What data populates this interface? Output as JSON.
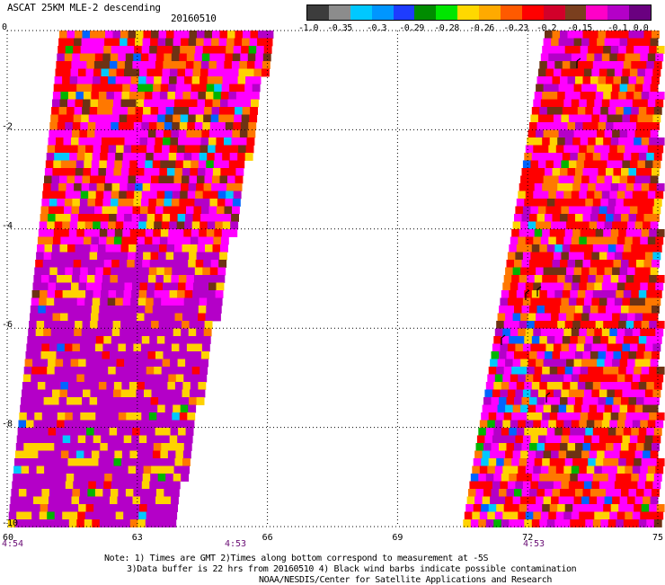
{
  "header": {
    "title": "ASCAT 25KM MLE-2 descending",
    "date": "20160510"
  },
  "colorbar": {
    "colors": [
      "#3c3c3c",
      "#8c8c8c",
      "#00c8ff",
      "#0096ff",
      "#1e3cff",
      "#008c00",
      "#00e600",
      "#ffd800",
      "#ffaa00",
      "#ff5a00",
      "#ff0000",
      "#d2002a",
      "#7a3f1e",
      "#ff00c8",
      "#b400c8",
      "#6a0080"
    ],
    "labels": [
      "-1.0",
      "-0.35",
      "-0.3",
      "-0.29",
      "-0.28",
      "-0.26",
      "-0.23",
      "-0.2",
      "-0.15",
      "-0.1",
      "0.0"
    ]
  },
  "axes": {
    "y_ticks": [
      "0",
      "-2",
      "-4",
      "-6",
      "-8",
      "-10"
    ],
    "x_ticks": [
      "60",
      "63",
      "66",
      "69",
      "72",
      "75"
    ]
  },
  "times": [
    "4:54",
    "4:53",
    "4:53"
  ],
  "notes": [
    "Note: 1) Times are GMT 2)Times along bottom correspond to measurement at -5S",
    "3)Data buffer is 22 hrs from 20160510 4) Black wind barbs indicate possible contamination",
    "NOAA/NESDIS/Center for Satellite Applications and Research"
  ],
  "palette": {
    "magenta": "#ff00ff",
    "purple": "#b400c8",
    "red": "#ff0000",
    "orange": "#ff7800",
    "yellow": "#ffd200",
    "brown": "#6e3214",
    "green": "#00b400",
    "cyan": "#00c8ff",
    "blue": "#0064ff",
    "grid": "#000000"
  }
}
